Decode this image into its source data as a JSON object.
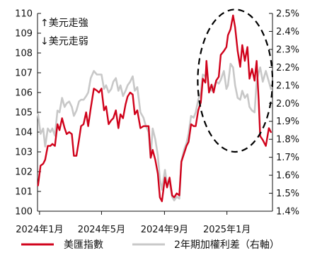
{
  "chart_data": {
    "type": "line",
    "x_tick_labels": [
      "2024年1月",
      "2024年5月",
      "2024年9月",
      "2025年1月"
    ],
    "x_ticks": [
      "2024-01-01",
      "2024-05-01",
      "2024-09-01",
      "2025-01-01"
    ],
    "xlim": [
      "2023-12-28",
      "2025-03-31"
    ],
    "ylim_left": [
      100,
      110
    ],
    "ylim_right": [
      1.4,
      2.5
    ],
    "left_tick_labels": [
      "100",
      "101",
      "102",
      "103",
      "104",
      "105",
      "106",
      "107",
      "108",
      "109",
      "110"
    ],
    "right_tick_labels": [
      "1.4%",
      "1.5%",
      "1.6%",
      "1.7%",
      "1.8%",
      "1.9%",
      "2.0%",
      "2.1%",
      "2.2%",
      "2.3%",
      "2.4%",
      "2.5%"
    ],
    "annotations": {
      "usd_up": "↑美元走強",
      "usd_down": "↓美元走弱"
    },
    "highlight": "dashed-ellipse",
    "legend_position": "bottom",
    "grid": false,
    "series": [
      {
        "name": "美匯指數",
        "axis": "left",
        "color": "#d0021b",
        "points": [
          [
            "2023-12-29",
            101.3
          ],
          [
            "2024-01-03",
            102.3
          ],
          [
            "2024-01-08",
            102.4
          ],
          [
            "2024-01-12",
            102.6
          ],
          [
            "2024-01-17",
            103.3
          ],
          [
            "2024-01-22",
            103.3
          ],
          [
            "2024-01-26",
            103.4
          ],
          [
            "2024-01-31",
            103.3
          ],
          [
            "2024-02-05",
            104.4
          ],
          [
            "2024-02-09",
            104.1
          ],
          [
            "2024-02-14",
            104.7
          ],
          [
            "2024-02-19",
            104.2
          ],
          [
            "2024-02-23",
            103.9
          ],
          [
            "2024-02-28",
            104.0
          ],
          [
            "2024-03-04",
            103.9
          ],
          [
            "2024-03-08",
            102.8
          ],
          [
            "2024-03-13",
            102.8
          ],
          [
            "2024-03-18",
            103.6
          ],
          [
            "2024-03-22",
            104.3
          ],
          [
            "2024-03-27",
            104.4
          ],
          [
            "2024-04-01",
            105.0
          ],
          [
            "2024-04-05",
            104.3
          ],
          [
            "2024-04-10",
            105.2
          ],
          [
            "2024-04-16",
            106.2
          ],
          [
            "2024-04-22",
            106.1
          ],
          [
            "2024-04-26",
            106.0
          ],
          [
            "2024-05-01",
            106.2
          ],
          [
            "2024-05-06",
            105.1
          ],
          [
            "2024-05-10",
            105.3
          ],
          [
            "2024-05-15",
            104.4
          ],
          [
            "2024-05-20",
            104.6
          ],
          [
            "2024-05-24",
            104.7
          ],
          [
            "2024-05-29",
            105.1
          ],
          [
            "2024-06-03",
            104.2
          ],
          [
            "2024-06-07",
            104.9
          ],
          [
            "2024-06-12",
            104.7
          ],
          [
            "2024-06-17",
            105.4
          ],
          [
            "2024-06-21",
            105.8
          ],
          [
            "2024-06-26",
            106.0
          ],
          [
            "2024-07-01",
            105.9
          ],
          [
            "2024-07-05",
            104.9
          ],
          [
            "2024-07-10",
            105.1
          ],
          [
            "2024-07-16",
            104.2
          ],
          [
            "2024-07-22",
            104.3
          ],
          [
            "2024-07-26",
            104.3
          ],
          [
            "2024-08-01",
            104.3
          ],
          [
            "2024-08-05",
            102.7
          ],
          [
            "2024-08-09",
            103.1
          ],
          [
            "2024-08-14",
            102.6
          ],
          [
            "2024-08-19",
            101.9
          ],
          [
            "2024-08-23",
            100.7
          ],
          [
            "2024-08-27",
            100.5
          ],
          [
            "2024-09-02",
            101.7
          ],
          [
            "2024-09-06",
            101.2
          ],
          [
            "2024-09-11",
            101.7
          ],
          [
            "2024-09-16",
            100.8
          ],
          [
            "2024-09-20",
            100.7
          ],
          [
            "2024-09-25",
            100.9
          ],
          [
            "2024-09-30",
            100.8
          ],
          [
            "2024-10-04",
            102.5
          ],
          [
            "2024-10-09",
            102.9
          ],
          [
            "2024-10-14",
            103.3
          ],
          [
            "2024-10-18",
            103.5
          ],
          [
            "2024-10-23",
            104.4
          ],
          [
            "2024-10-28",
            104.3
          ],
          [
            "2024-11-01",
            104.3
          ],
          [
            "2024-11-06",
            105.1
          ],
          [
            "2024-11-11",
            105.5
          ],
          [
            "2024-11-15",
            106.7
          ],
          [
            "2024-11-20",
            106.5
          ],
          [
            "2024-11-22",
            107.6
          ],
          [
            "2024-11-27",
            106.0
          ],
          [
            "2024-12-02",
            106.4
          ],
          [
            "2024-12-06",
            106.0
          ],
          [
            "2024-12-11",
            106.6
          ],
          [
            "2024-12-16",
            106.8
          ],
          [
            "2024-12-20",
            107.9
          ],
          [
            "2024-12-26",
            108.1
          ],
          [
            "2024-12-31",
            108.3
          ],
          [
            "2025-01-03",
            108.9
          ],
          [
            "2025-01-08",
            109.2
          ],
          [
            "2025-01-13",
            109.9
          ],
          [
            "2025-01-17",
            109.3
          ],
          [
            "2025-01-22",
            108.1
          ],
          [
            "2025-01-27",
            107.3
          ],
          [
            "2025-01-31",
            108.4
          ],
          [
            "2025-02-05",
            107.6
          ],
          [
            "2025-02-10",
            108.3
          ],
          [
            "2025-02-14",
            106.7
          ],
          [
            "2025-02-19",
            107.2
          ],
          [
            "2025-02-24",
            106.6
          ],
          [
            "2025-02-28",
            107.6
          ],
          [
            "2025-03-04",
            105.6
          ],
          [
            "2025-03-07",
            103.8
          ],
          [
            "2025-03-12",
            103.6
          ],
          [
            "2025-03-18",
            103.3
          ],
          [
            "2025-03-24",
            104.2
          ],
          [
            "2025-03-28",
            104.0
          ]
        ]
      },
      {
        "name": "2年期加權利差（右軸）",
        "axis": "right",
        "color": "#c8c8c8",
        "points": [
          [
            "2023-12-29",
            1.94
          ],
          [
            "2024-01-03",
            1.83
          ],
          [
            "2024-01-08",
            1.86
          ],
          [
            "2024-01-12",
            1.76
          ],
          [
            "2024-01-17",
            1.86
          ],
          [
            "2024-01-22",
            1.84
          ],
          [
            "2024-01-26",
            1.86
          ],
          [
            "2024-01-31",
            1.82
          ],
          [
            "2024-02-05",
            1.96
          ],
          [
            "2024-02-09",
            1.95
          ],
          [
            "2024-02-14",
            2.03
          ],
          [
            "2024-02-19",
            1.98
          ],
          [
            "2024-02-23",
            2.0
          ],
          [
            "2024-02-28",
            2.01
          ],
          [
            "2024-03-04",
            1.98
          ],
          [
            "2024-03-08",
            1.93
          ],
          [
            "2024-03-13",
            1.96
          ],
          [
            "2024-03-18",
            2.01
          ],
          [
            "2024-03-22",
            2.02
          ],
          [
            "2024-03-27",
            2.02
          ],
          [
            "2024-04-01",
            2.04
          ],
          [
            "2024-04-05",
            2.06
          ],
          [
            "2024-04-10",
            2.14
          ],
          [
            "2024-04-16",
            2.18
          ],
          [
            "2024-04-22",
            2.16
          ],
          [
            "2024-04-26",
            2.16
          ],
          [
            "2024-05-01",
            2.16
          ],
          [
            "2024-05-06",
            2.08
          ],
          [
            "2024-05-10",
            2.1
          ],
          [
            "2024-05-15",
            2.06
          ],
          [
            "2024-05-20",
            2.08
          ],
          [
            "2024-05-24",
            2.12
          ],
          [
            "2024-05-29",
            2.14
          ],
          [
            "2024-06-03",
            2.07
          ],
          [
            "2024-06-07",
            2.1
          ],
          [
            "2024-06-12",
            2.04
          ],
          [
            "2024-06-17",
            2.07
          ],
          [
            "2024-06-21",
            2.1
          ],
          [
            "2024-06-26",
            2.12
          ],
          [
            "2024-07-01",
            2.15
          ],
          [
            "2024-07-05",
            2.07
          ],
          [
            "2024-07-10",
            2.09
          ],
          [
            "2024-07-16",
            1.95
          ],
          [
            "2024-07-22",
            1.92
          ],
          [
            "2024-07-26",
            1.88
          ],
          [
            "2024-08-01",
            1.84
          ],
          [
            "2024-08-05",
            1.7
          ],
          [
            "2024-08-09",
            1.86
          ],
          [
            "2024-08-14",
            1.8
          ],
          [
            "2024-08-19",
            1.71
          ],
          [
            "2024-08-23",
            1.58
          ],
          [
            "2024-08-27",
            1.52
          ],
          [
            "2024-09-02",
            1.63
          ],
          [
            "2024-09-06",
            1.55
          ],
          [
            "2024-09-11",
            1.56
          ],
          [
            "2024-09-16",
            1.48
          ],
          [
            "2024-09-20",
            1.46
          ],
          [
            "2024-09-25",
            1.48
          ],
          [
            "2024-09-30",
            1.47
          ],
          [
            "2024-10-04",
            1.68
          ],
          [
            "2024-10-09",
            1.74
          ],
          [
            "2024-10-14",
            1.78
          ],
          [
            "2024-10-18",
            1.83
          ],
          [
            "2024-10-23",
            1.93
          ],
          [
            "2024-10-28",
            1.92
          ],
          [
            "2024-11-01",
            1.95
          ],
          [
            "2024-11-06",
            2.02
          ],
          [
            "2024-11-11",
            2.06
          ],
          [
            "2024-11-15",
            2.16
          ],
          [
            "2024-11-20",
            2.15
          ],
          [
            "2024-11-22",
            2.2
          ],
          [
            "2024-11-27",
            2.08
          ],
          [
            "2024-12-02",
            2.07
          ],
          [
            "2024-12-06",
            2.09
          ],
          [
            "2024-12-11",
            2.12
          ],
          [
            "2024-12-16",
            2.11
          ],
          [
            "2024-12-20",
            2.13
          ],
          [
            "2024-12-26",
            2.18
          ],
          [
            "2024-12-31",
            2.08
          ],
          [
            "2025-01-03",
            2.1
          ],
          [
            "2025-01-08",
            2.22
          ],
          [
            "2025-01-13",
            2.2
          ],
          [
            "2025-01-17",
            2.1
          ],
          [
            "2025-01-22",
            2.03
          ],
          [
            "2025-01-27",
            2.02
          ],
          [
            "2025-01-31",
            2.07
          ],
          [
            "2025-02-05",
            2.03
          ],
          [
            "2025-02-10",
            2.05
          ],
          [
            "2025-02-14",
            1.98
          ],
          [
            "2025-02-19",
            1.96
          ],
          [
            "2025-02-24",
            1.95
          ],
          [
            "2025-02-28",
            2.12
          ],
          [
            "2025-03-04",
            2.17
          ],
          [
            "2025-03-07",
            2.2
          ],
          [
            "2025-03-12",
            2.12
          ],
          [
            "2025-03-18",
            2.18
          ],
          [
            "2025-03-24",
            2.12
          ],
          [
            "2025-03-28",
            2.08
          ]
        ]
      }
    ]
  }
}
